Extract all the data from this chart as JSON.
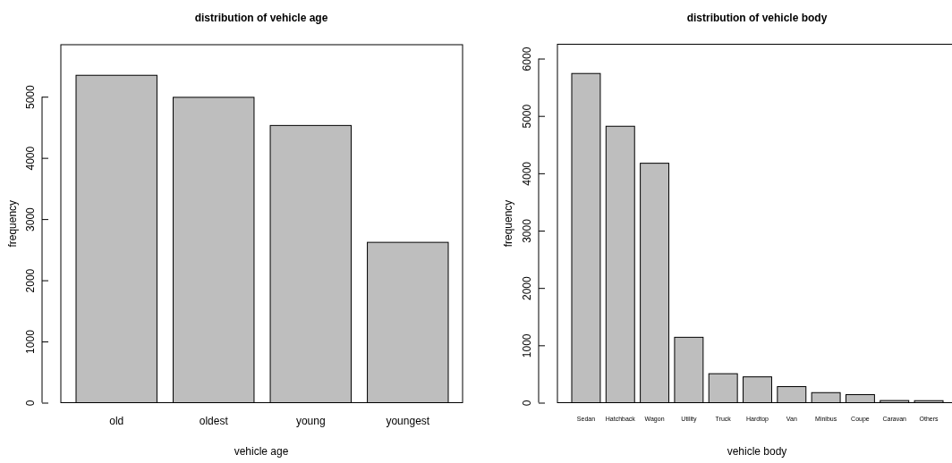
{
  "chart_data": [
    {
      "type": "bar",
      "title": "distribution of vehicle age",
      "xlabel": "vehicle age",
      "ylabel": "frequency",
      "categories": [
        "old",
        "oldest",
        "young",
        "youngest"
      ],
      "values": [
        5350,
        4990,
        4530,
        2620
      ],
      "color": "#bebebe",
      "ylim": [
        0,
        5850
      ],
      "yticks": [
        0,
        1000,
        2000,
        3000,
        4000,
        5000
      ],
      "grid": false
    },
    {
      "type": "bar",
      "title": "distribution of vehicle body",
      "xlabel": "vehicle body",
      "ylabel": "frequency",
      "categories": [
        "Sedan",
        "Hatchback",
        "Wagon",
        "Utility",
        "Truck",
        "Hardtop",
        "Van",
        "Minibus",
        "Coupe",
        "Caravan",
        "Others"
      ],
      "values": [
        5740,
        4820,
        4175,
        1140,
        505,
        450,
        280,
        175,
        140,
        37,
        35
      ],
      "color": "#bebebe",
      "ylim": [
        0,
        6250
      ],
      "yticks": [
        0,
        1000,
        2000,
        3000,
        4000,
        5000,
        6000
      ],
      "grid": false
    }
  ]
}
